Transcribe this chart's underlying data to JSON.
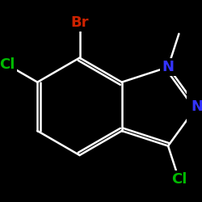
{
  "background_color": "#000000",
  "bond_color": "#ffffff",
  "atom_colors": {
    "Br": "#cc2200",
    "Cl": "#00bb00",
    "N": "#3333ff",
    "C": "#ffffff"
  },
  "figsize": [
    2.5,
    2.5
  ],
  "dpi": 100,
  "bond_lw": 1.8,
  "font_size": 13
}
